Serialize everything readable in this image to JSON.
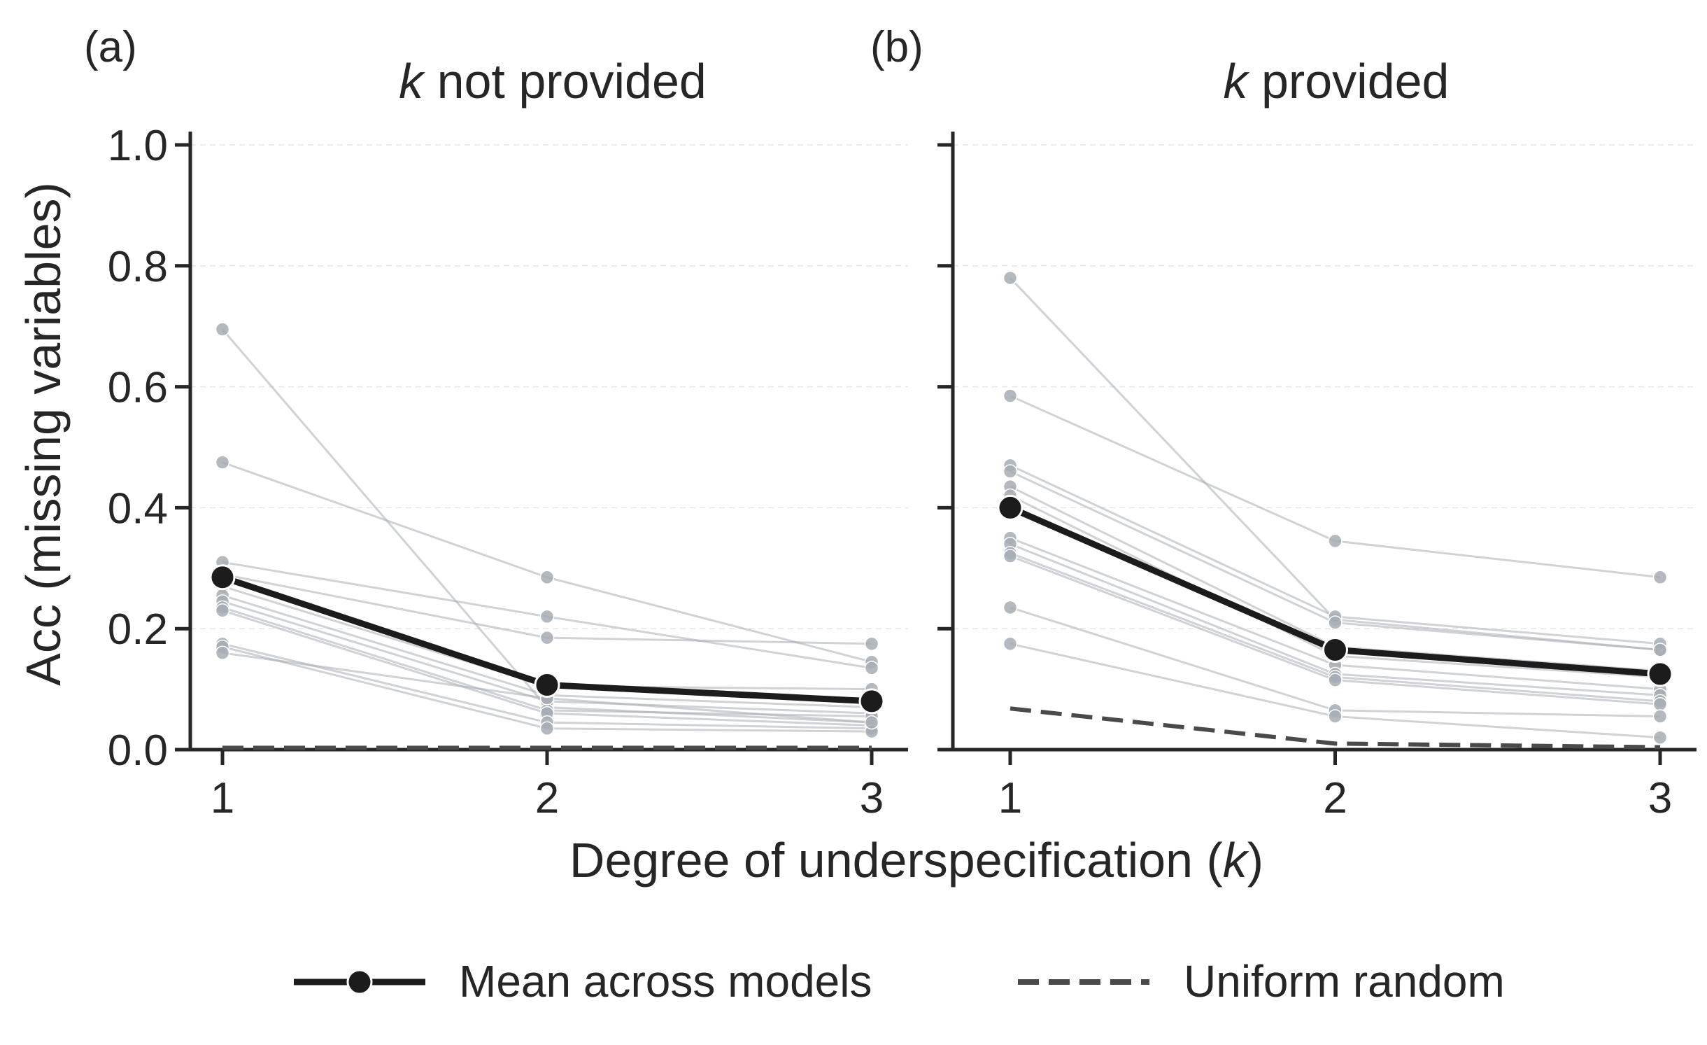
{
  "figure": {
    "xlabel_prefix": "Degree of underspecification (",
    "xlabel_var": "k",
    "xlabel_suffix": ")",
    "ylabel": "Acc (missing variables)"
  },
  "legend": {
    "placement": "bottom-center",
    "mean_label": "Mean across models",
    "random_label": "Uniform random"
  },
  "colors": {
    "mean": "#1c1c1c",
    "models": "#a7adb4",
    "random": "#4a4a4a",
    "axis": "#262626",
    "grid": "#e6e6e6"
  },
  "chart_data": [
    {
      "type": "line",
      "panel_label": "(a)",
      "title_var": "k",
      "title_rest": " not provided",
      "x": [
        1,
        2,
        3
      ],
      "x_ticks": [
        "1",
        "2",
        "3"
      ],
      "ylim": [
        0,
        1.0
      ],
      "y_ticks": [
        "0.0",
        "0.2",
        "0.4",
        "0.6",
        "0.8",
        "1.0"
      ],
      "grid": "horizontal dashed",
      "mean": [
        0.285,
        0.107,
        0.08
      ],
      "uniform_random": [
        0.003,
        0.003,
        0.003
      ],
      "model_lines": [
        [
          0.695,
          0.07,
          0.045
        ],
        [
          0.475,
          0.285,
          0.145
        ],
        [
          0.31,
          0.22,
          0.135
        ],
        [
          0.29,
          0.185,
          0.175
        ],
        [
          0.27,
          0.105,
          0.1
        ],
        [
          0.255,
          0.09,
          0.07
        ],
        [
          0.245,
          0.08,
          0.06
        ],
        [
          0.235,
          0.065,
          0.055
        ],
        [
          0.23,
          0.06,
          0.04
        ],
        [
          0.175,
          0.045,
          0.035
        ],
        [
          0.17,
          0.035,
          0.03
        ],
        [
          0.16,
          0.085,
          0.045
        ]
      ]
    },
    {
      "type": "line",
      "panel_label": "(b)",
      "title_var": "k",
      "title_rest": " provided",
      "x": [
        1,
        2,
        3
      ],
      "x_ticks": [
        "1",
        "2",
        "3"
      ],
      "ylim": [
        0,
        1.0
      ],
      "y_ticks": [
        "0.0",
        "0.2",
        "0.4",
        "0.6",
        "0.8",
        "1.0"
      ],
      "grid": "horizontal dashed",
      "mean": [
        0.4,
        0.165,
        0.125
      ],
      "uniform_random": [
        0.068,
        0.01,
        0.004
      ],
      "model_lines": [
        [
          0.78,
          0.215,
          0.165
        ],
        [
          0.585,
          0.345,
          0.285
        ],
        [
          0.47,
          0.22,
          0.175
        ],
        [
          0.46,
          0.21,
          0.165
        ],
        [
          0.435,
          0.17,
          0.13
        ],
        [
          0.42,
          0.155,
          0.12
        ],
        [
          0.35,
          0.14,
          0.1
        ],
        [
          0.34,
          0.125,
          0.09
        ],
        [
          0.325,
          0.12,
          0.08
        ],
        [
          0.32,
          0.115,
          0.075
        ],
        [
          0.235,
          0.065,
          0.055
        ],
        [
          0.175,
          0.055,
          0.02
        ]
      ]
    }
  ]
}
